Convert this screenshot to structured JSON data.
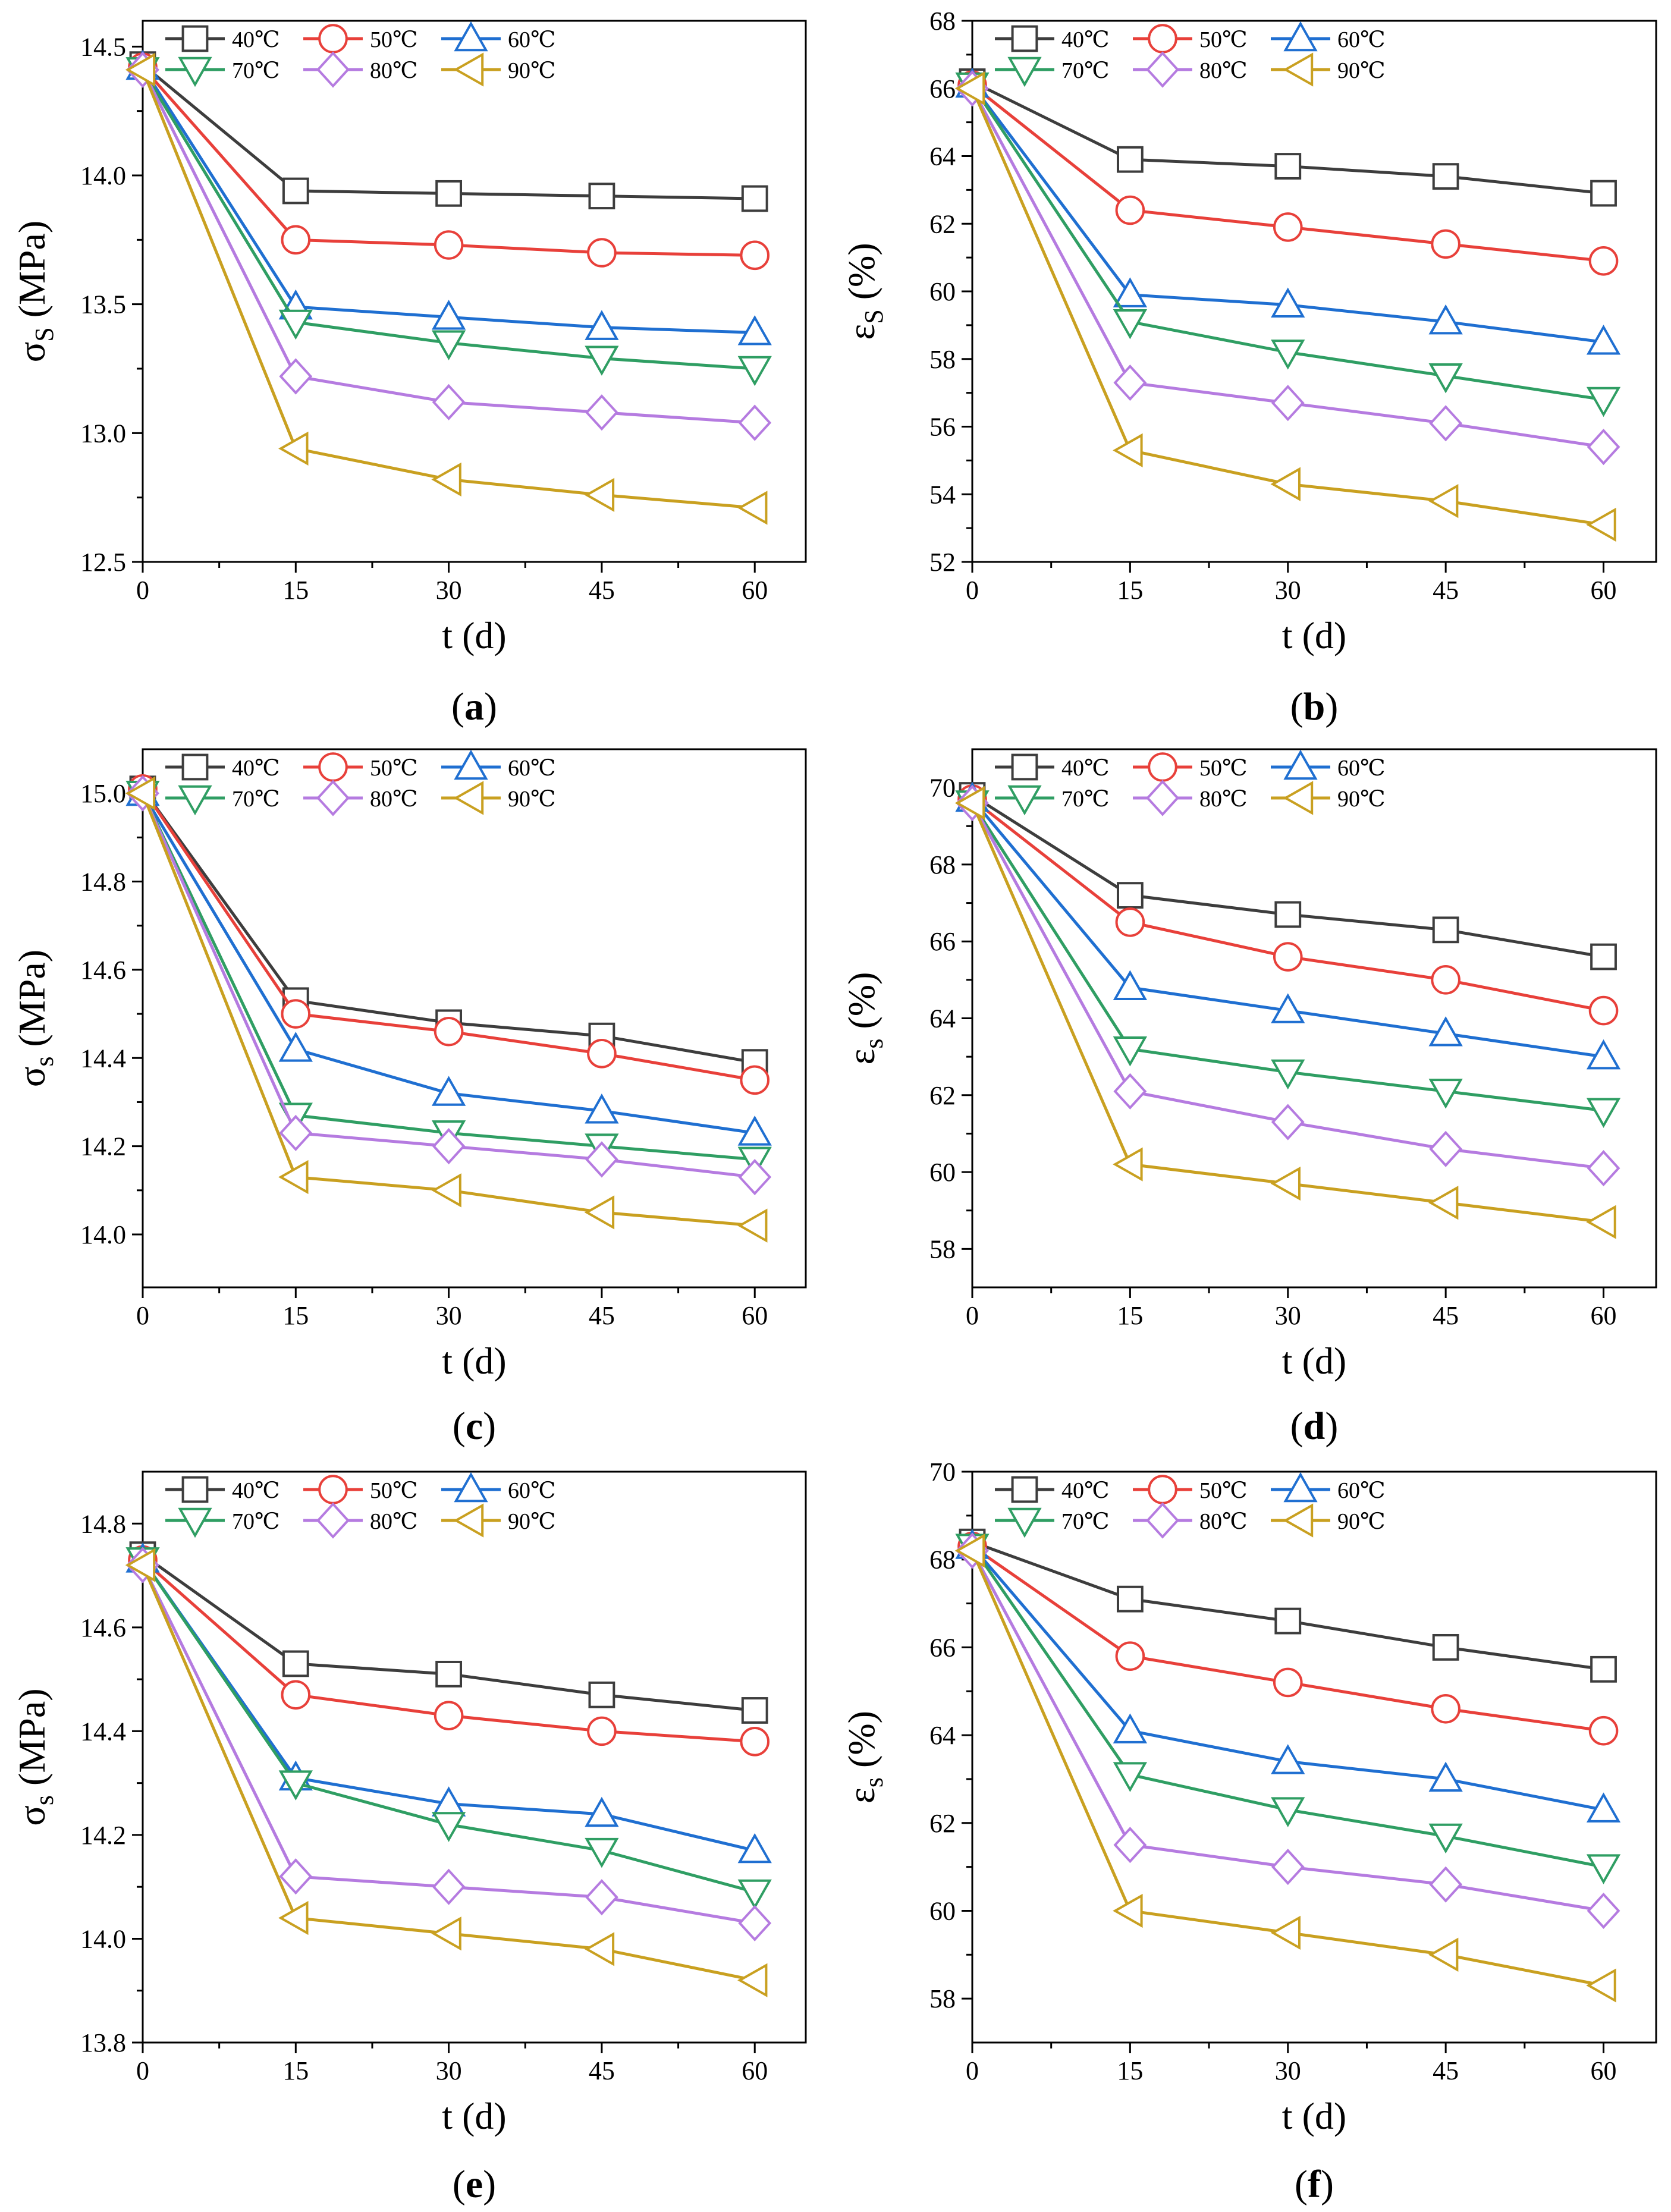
{
  "legend_labels": [
    "40℃",
    "50℃",
    "60℃",
    "70℃",
    "80℃",
    "90℃"
  ],
  "series_styles": [
    {
      "color": "#3d3d3d",
      "marker": "square"
    },
    {
      "color": "#e8403a",
      "marker": "circle"
    },
    {
      "color": "#1f6fd1",
      "marker": "triangle-up"
    },
    {
      "color": "#2f9e63",
      "marker": "triangle-down"
    },
    {
      "color": "#b57be0",
      "marker": "diamond"
    },
    {
      "color": "#c9a020",
      "marker": "triangle-left"
    }
  ],
  "chart_data": [
    {
      "type": "line",
      "panel_label": "a",
      "title": "",
      "xlabel": "t (d)",
      "ylabel": "σS (MPa)",
      "ylabel_main": "σ",
      "ylabel_sub": "S",
      "ylabel_unit": " (MPa)",
      "x": [
        0,
        15,
        30,
        45,
        60
      ],
      "xlim": [
        0,
        65
      ],
      "ylim": [
        12.5,
        14.6
      ],
      "xticks": [
        "0",
        "15",
        "30",
        "45",
        "60"
      ],
      "yticks": [
        "12.5",
        "13.0",
        "13.5",
        "14.0",
        "14.5"
      ],
      "legend_position": "top-left",
      "grid": false,
      "series": [
        {
          "name": "40℃",
          "values": [
            14.43,
            13.94,
            13.93,
            13.92,
            13.91
          ]
        },
        {
          "name": "50℃",
          "values": [
            14.42,
            13.75,
            13.73,
            13.7,
            13.69
          ]
        },
        {
          "name": "60℃",
          "values": [
            14.42,
            13.49,
            13.45,
            13.41,
            13.39
          ]
        },
        {
          "name": "70℃",
          "values": [
            14.41,
            13.43,
            13.35,
            13.29,
            13.25
          ]
        },
        {
          "name": "80℃",
          "values": [
            14.41,
            13.22,
            13.12,
            13.08,
            13.04
          ]
        },
        {
          "name": "90℃",
          "values": [
            14.41,
            12.94,
            12.82,
            12.76,
            12.71
          ]
        }
      ]
    },
    {
      "type": "line",
      "panel_label": "b",
      "title": "",
      "xlabel": "t (d)",
      "ylabel": "εS (%)",
      "ylabel_main": "ε",
      "ylabel_sub": "S",
      "ylabel_unit": " (%)",
      "x": [
        0,
        15,
        30,
        45,
        60
      ],
      "xlim": [
        0,
        65
      ],
      "ylim": [
        52,
        68
      ],
      "xticks": [
        "0",
        "15",
        "30",
        "45",
        "60"
      ],
      "yticks": [
        "52",
        "54",
        "56",
        "58",
        "60",
        "62",
        "64",
        "66",
        "68"
      ],
      "legend_position": "top-left",
      "grid": false,
      "series": [
        {
          "name": "40℃",
          "values": [
            66.2,
            63.9,
            63.7,
            63.4,
            62.9
          ]
        },
        {
          "name": "50℃",
          "values": [
            66.1,
            62.4,
            61.9,
            61.4,
            60.9
          ]
        },
        {
          "name": "60℃",
          "values": [
            66.1,
            59.9,
            59.6,
            59.1,
            58.5
          ]
        },
        {
          "name": "70℃",
          "values": [
            66.1,
            59.1,
            58.2,
            57.5,
            56.8
          ]
        },
        {
          "name": "80℃",
          "values": [
            66.0,
            57.3,
            56.7,
            56.1,
            55.4
          ]
        },
        {
          "name": "90℃",
          "values": [
            66.0,
            55.3,
            54.3,
            53.8,
            53.1
          ]
        }
      ]
    },
    {
      "type": "line",
      "panel_label": "c",
      "title": "",
      "xlabel": "t (d)",
      "ylabel": "σs (MPa)",
      "ylabel_main": "σ",
      "ylabel_sub": "s",
      "ylabel_unit": " (MPa)",
      "x": [
        0,
        15,
        30,
        45,
        60
      ],
      "xlim": [
        0,
        65
      ],
      "ylim": [
        13.88,
        15.1
      ],
      "xticks": [
        "0",
        "15",
        "30",
        "45",
        "60"
      ],
      "yticks": [
        "14.0",
        "14.2",
        "14.4",
        "14.6",
        "14.8",
        "15.0"
      ],
      "legend_position": "top-left",
      "grid": false,
      "series": [
        {
          "name": "40℃",
          "values": [
            15.01,
            14.53,
            14.48,
            14.45,
            14.39
          ]
        },
        {
          "name": "50℃",
          "values": [
            15.01,
            14.5,
            14.46,
            14.41,
            14.35
          ]
        },
        {
          "name": "60℃",
          "values": [
            15.0,
            14.42,
            14.32,
            14.28,
            14.23
          ]
        },
        {
          "name": "70℃",
          "values": [
            15.0,
            14.27,
            14.23,
            14.2,
            14.17
          ]
        },
        {
          "name": "80℃",
          "values": [
            15.0,
            14.23,
            14.2,
            14.17,
            14.13
          ]
        },
        {
          "name": "90℃",
          "values": [
            15.0,
            14.13,
            14.1,
            14.05,
            14.02
          ]
        }
      ]
    },
    {
      "type": "line",
      "panel_label": "d",
      "title": "",
      "xlabel": "t (d)",
      "ylabel": "εs (%)",
      "ylabel_main": "ε",
      "ylabel_sub": "s",
      "ylabel_unit": " (%)",
      "x": [
        0,
        15,
        30,
        45,
        60
      ],
      "xlim": [
        0,
        65
      ],
      "ylim": [
        57,
        71
      ],
      "xticks": [
        "0",
        "15",
        "30",
        "45",
        "60"
      ],
      "yticks": [
        "58",
        "60",
        "62",
        "64",
        "66",
        "68",
        "70"
      ],
      "legend_position": "top-left",
      "grid": false,
      "series": [
        {
          "name": "40℃",
          "values": [
            69.8,
            67.2,
            66.7,
            66.3,
            65.6
          ]
        },
        {
          "name": "50℃",
          "values": [
            69.7,
            66.5,
            65.6,
            65.0,
            64.2
          ]
        },
        {
          "name": "60℃",
          "values": [
            69.7,
            64.8,
            64.2,
            63.6,
            63.0
          ]
        },
        {
          "name": "70℃",
          "values": [
            69.6,
            63.2,
            62.6,
            62.1,
            61.6
          ]
        },
        {
          "name": "80℃",
          "values": [
            69.6,
            62.1,
            61.3,
            60.6,
            60.1
          ]
        },
        {
          "name": "90℃",
          "values": [
            69.6,
            60.2,
            59.7,
            59.2,
            58.7
          ]
        }
      ]
    },
    {
      "type": "line",
      "panel_label": "e",
      "title": "",
      "xlabel": "t (d)",
      "ylabel": "σs (MPa)",
      "ylabel_main": "σ",
      "ylabel_sub": "s",
      "ylabel_unit": " (MPa)",
      "x": [
        0,
        15,
        30,
        45,
        60
      ],
      "xlim": [
        0,
        65
      ],
      "ylim": [
        13.8,
        14.9
      ],
      "xticks": [
        "0",
        "15",
        "30",
        "45",
        "60"
      ],
      "yticks": [
        "13.8",
        "14.0",
        "14.2",
        "14.4",
        "14.6",
        "14.8"
      ],
      "legend_position": "top-left",
      "grid": false,
      "series": [
        {
          "name": "40℃",
          "values": [
            14.74,
            14.53,
            14.51,
            14.47,
            14.44
          ]
        },
        {
          "name": "50℃",
          "values": [
            14.73,
            14.47,
            14.43,
            14.4,
            14.38
          ]
        },
        {
          "name": "60℃",
          "values": [
            14.73,
            14.31,
            14.26,
            14.24,
            14.17
          ]
        },
        {
          "name": "70℃",
          "values": [
            14.73,
            14.3,
            14.22,
            14.17,
            14.09
          ]
        },
        {
          "name": "80℃",
          "values": [
            14.72,
            14.12,
            14.1,
            14.08,
            14.03
          ]
        },
        {
          "name": "90℃",
          "values": [
            14.72,
            14.04,
            14.01,
            13.98,
            13.92
          ]
        }
      ]
    },
    {
      "type": "line",
      "panel_label": "f",
      "title": "",
      "xlabel": "t (d)",
      "ylabel": "εs (%)",
      "ylabel_main": "ε",
      "ylabel_sub": "s",
      "ylabel_unit": " (%)",
      "x": [
        0,
        15,
        30,
        45,
        60
      ],
      "xlim": [
        0,
        65
      ],
      "ylim": [
        57,
        70
      ],
      "xticks": [
        "0",
        "15",
        "30",
        "45",
        "60"
      ],
      "yticks": [
        "58",
        "60",
        "62",
        "64",
        "66",
        "68",
        "70"
      ],
      "legend_position": "top-left",
      "grid": false,
      "series": [
        {
          "name": "40℃",
          "values": [
            68.4,
            67.1,
            66.6,
            66.0,
            65.5
          ]
        },
        {
          "name": "50℃",
          "values": [
            68.3,
            65.8,
            65.2,
            64.6,
            64.1
          ]
        },
        {
          "name": "60℃",
          "values": [
            68.3,
            64.1,
            63.4,
            63.0,
            62.3
          ]
        },
        {
          "name": "70℃",
          "values": [
            68.3,
            63.1,
            62.3,
            61.7,
            61.0
          ]
        },
        {
          "name": "80℃",
          "values": [
            68.2,
            61.5,
            61.0,
            60.6,
            60.0
          ]
        },
        {
          "name": "90℃",
          "values": [
            68.2,
            60.0,
            59.5,
            59.0,
            58.3
          ]
        }
      ]
    }
  ]
}
